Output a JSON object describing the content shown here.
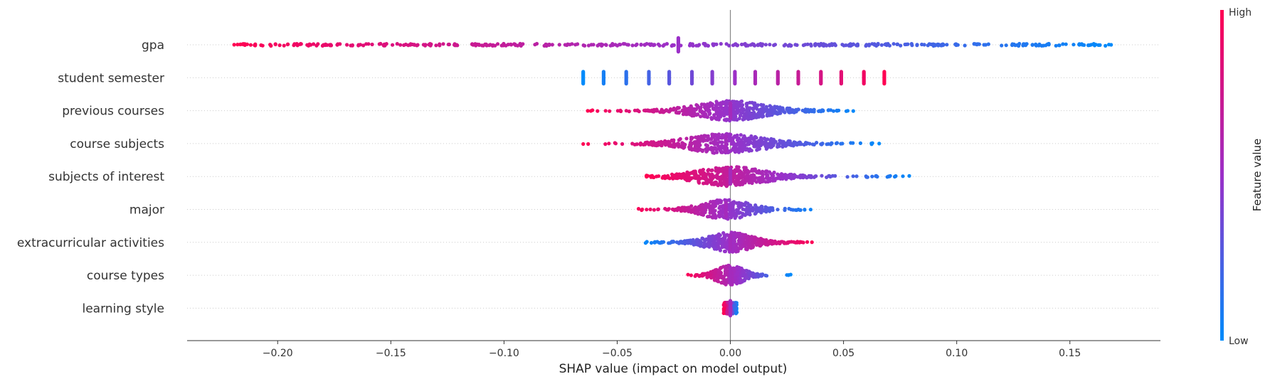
{
  "chart_data": {
    "type": "scatter",
    "subtype": "shap-beeswarm",
    "title": "",
    "xlabel": "SHAP value (impact on model output)",
    "ylabel": "",
    "xlim": [
      -0.24,
      0.19
    ],
    "x_ticks": [
      {
        "value": -0.2,
        "label": "−0.20"
      },
      {
        "value": -0.15,
        "label": "−0.15"
      },
      {
        "value": -0.1,
        "label": "−0.10"
      },
      {
        "value": -0.05,
        "label": "−0.05"
      },
      {
        "value": 0.0,
        "label": "0.00"
      },
      {
        "value": 0.05,
        "label": "0.05"
      },
      {
        "value": 0.1,
        "label": "0.10"
      },
      {
        "value": 0.15,
        "label": "0.15"
      }
    ],
    "grid": false,
    "zero_line": true,
    "legend": {
      "position": "right",
      "type": "colorbar"
    },
    "colorbar": {
      "label": "Feature value",
      "high_label": "High",
      "low_label": "Low",
      "high_color": "#ff0052",
      "mid_color": "#9b30c8",
      "low_color": "#008bfb"
    },
    "features": [
      {
        "name": "gpa",
        "min": -0.22,
        "max": 0.17,
        "high_side": "left",
        "density": "uniform",
        "count": 420,
        "center": -0.023
      },
      {
        "name": "student semester",
        "min": -0.065,
        "max": 0.068,
        "high_side": "right",
        "density": "discrete",
        "levels": [
          -0.065,
          -0.056,
          -0.046,
          -0.036,
          -0.027,
          -0.017,
          -0.008,
          0.002,
          0.011,
          0.021,
          0.03,
          0.04,
          0.049,
          0.059,
          0.068
        ]
      },
      {
        "name": "previous courses",
        "min": -0.063,
        "max": 0.056,
        "high_side": "left",
        "density": "centered",
        "count": 520,
        "center": 0.0
      },
      {
        "name": "course subjects",
        "min": -0.065,
        "max": 0.066,
        "high_side": "left",
        "density": "centered",
        "count": 480,
        "center": -0.002
      },
      {
        "name": "subjects of interest",
        "min": -0.037,
        "max": 0.081,
        "high_side": "left",
        "density": "centered",
        "count": 470,
        "center": 0.0
      },
      {
        "name": "major",
        "min": -0.043,
        "max": 0.039,
        "high_side": "left",
        "density": "centered",
        "count": 330,
        "center": -0.002
      },
      {
        "name": "extracurricular activities",
        "min": -0.039,
        "max": 0.037,
        "high_side": "right",
        "density": "centered",
        "count": 430,
        "center": 0.0
      },
      {
        "name": "course types",
        "min": -0.02,
        "max": 0.027,
        "high_side": "left",
        "density": "centered",
        "count": 280,
        "center": 0.0
      },
      {
        "name": "learning style",
        "min": -0.003,
        "max": 0.003,
        "high_side": "left",
        "density": "tight",
        "count": 150,
        "center": 0.0
      }
    ]
  }
}
